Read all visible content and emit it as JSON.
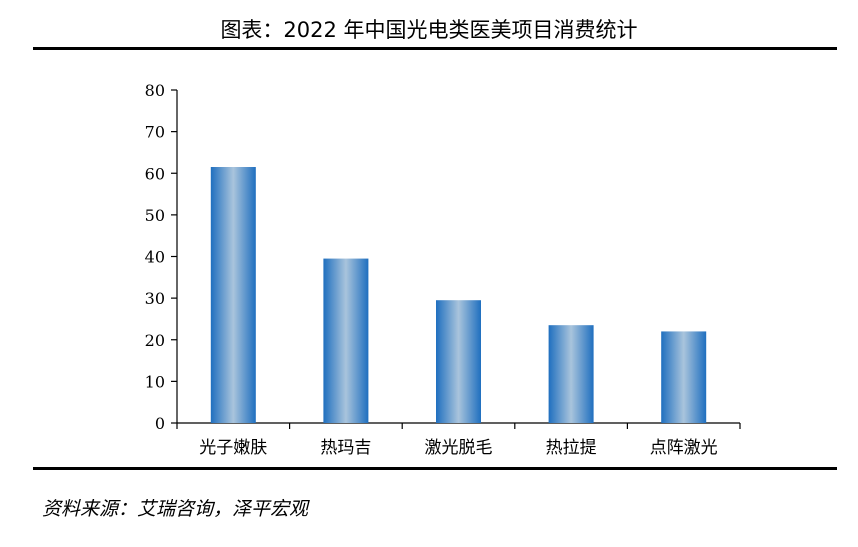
{
  "header": {
    "title": "图表：2022 年中国光电类医美项目消费统计"
  },
  "footer": {
    "source": "资料来源：艾瑞咨询，泽平宏观"
  },
  "colors": {
    "bar_edge": "#1f6fbf",
    "bar_center": "#a9c4dc",
    "axis": "#000000"
  },
  "chart_data": {
    "type": "bar",
    "title": "",
    "xlabel": "",
    "ylabel": "",
    "categories": [
      "光子嫩肤",
      "热玛吉",
      "激光脱毛",
      "热拉提",
      "点阵激光"
    ],
    "values": [
      61.5,
      39.5,
      29.5,
      23.5,
      22
    ],
    "ylim": [
      0,
      80
    ],
    "yticks": [
      0,
      10,
      20,
      30,
      40,
      50,
      60,
      70,
      80
    ],
    "grid": false,
    "legend": "none"
  }
}
